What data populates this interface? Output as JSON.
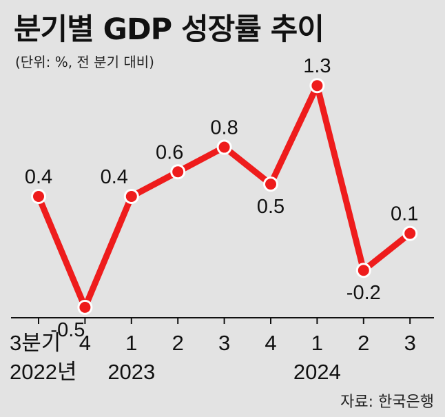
{
  "title": "분기별 GDP 성장률 추이",
  "unit_note": "(단위: %, 전 분기 대비)",
  "source": "자료: 한국은행",
  "colors": {
    "line": "#ee1c1c",
    "marker_fill": "#ee1c1c",
    "marker_stroke": "#ffffff",
    "axis": "#111111",
    "background": "#e3e3e3"
  },
  "chart_data": {
    "type": "line",
    "categories": [
      "3분기",
      "4",
      "1",
      "2",
      "3",
      "4",
      "1",
      "2",
      "3"
    ],
    "year_labels": [
      "2022년",
      "2023",
      "2024"
    ],
    "values": [
      0.4,
      -0.5,
      0.4,
      0.6,
      0.8,
      0.5,
      1.3,
      -0.2,
      0.1
    ],
    "value_labels": [
      "0.4",
      "-0.5",
      "0.4",
      "0.6",
      "0.8",
      "0.5",
      "1.3",
      "-0.2",
      "0.1"
    ],
    "xlabel": "",
    "ylabel": "",
    "grid": false,
    "legend": "none"
  }
}
